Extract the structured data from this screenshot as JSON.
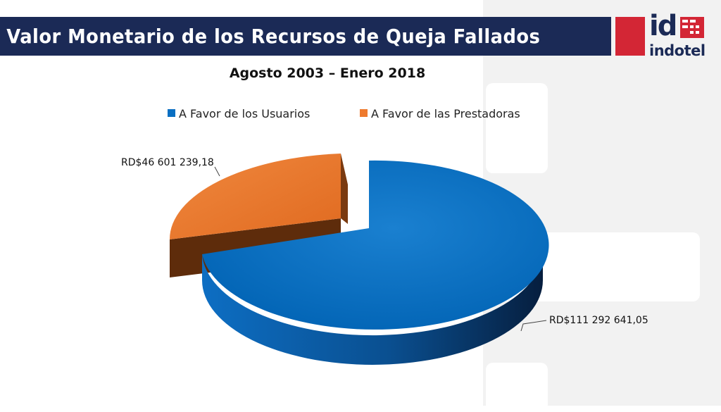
{
  "header": {
    "title": "Valor Monetario de los Recursos de Queja Fallados",
    "logo_icon": "indotel-logo-icon",
    "logo_mark": "id",
    "logo_name": "indotel"
  },
  "colors": {
    "title_bar": "#1b2a56",
    "accent_red": "#d32635",
    "series_usuarios": "#0a6fc2",
    "series_prestadoras": "#ee7a2e"
  },
  "chart_data": {
    "type": "pie",
    "title": "Agosto 2003 – Enero 2018",
    "legend_position": "top",
    "slices": [
      {
        "name": "A Favor de los Usuarios",
        "value": 111292641.05,
        "label": "RD$111 292 641,05",
        "color": "#0a6fc2"
      },
      {
        "name": "A Favor de las Prestadoras",
        "value": 46601239.18,
        "label": "RD$46 601 239,18",
        "color": "#ee7a2e"
      }
    ]
  }
}
